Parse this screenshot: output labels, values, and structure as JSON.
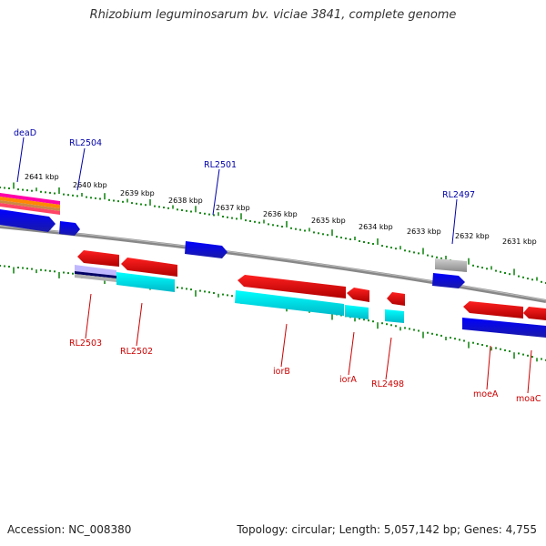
{
  "title": "Rhizobium leguminosarum bv. viciae 3841, complete genome",
  "accession": "Accession: NC_008380",
  "summary": "Topology: circular; Length: 5,057,142 bp; Genes: 4,755",
  "colors": {
    "backbone": "#8a8a8a",
    "tick": "#1a8a1a",
    "forward_gene": "#0000ee",
    "reverse_gene": "#ee0000",
    "cds_cyan": "#00dddd",
    "label_forward": "#0000aa",
    "label_reverse": "#cc0000"
  },
  "scale_labels": [
    "2641 kbp",
    "2640 kbp",
    "2639 kbp",
    "2638 kbp",
    "2637 kbp",
    "2636 kbp",
    "2635 kbp",
    "2634 kbp",
    "2633 kbp",
    "2632 kbp",
    "2631 kbp"
  ],
  "genes_top": [
    "deaD",
    "RL2504",
    "RL2501",
    "RL2497"
  ],
  "genes_bottom": [
    "RL2503",
    "RL2502",
    "iorB",
    "iorA",
    "RL2498",
    "moeA",
    "moaC"
  ]
}
